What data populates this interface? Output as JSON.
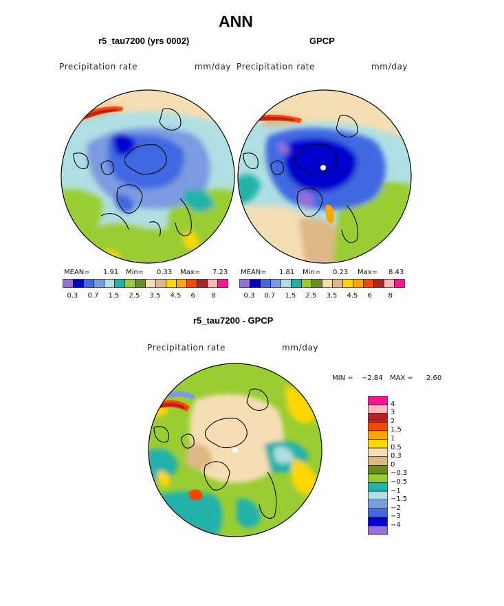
{
  "title": "ANN",
  "panels": [
    {
      "subtitle": "r5_tau7200 (yrs 0002)",
      "variable": "Precipitation rate",
      "units": "mm/day",
      "stats": {
        "mean_label": "MEAN=",
        "mean": "1.91",
        "min_label": "Min=",
        "min": "0.33",
        "max_label": "Max=",
        "max": "7.23"
      }
    },
    {
      "subtitle": "GPCP",
      "variable": "Precipitation rate",
      "units": "mm/day",
      "stats": {
        "mean_label": "MEAN=",
        "mean": "1.81",
        "min_label": "Min=",
        "min": "0.23",
        "max_label": "Max=",
        "max": "8.43"
      }
    }
  ],
  "top_colorbar": {
    "colors": [
      "#9370db",
      "#0000cd",
      "#4169e1",
      "#7b9be0",
      "#afdfe3",
      "#20b2aa",
      "#9acd32",
      "#6b8e23",
      "#f5deb3",
      "#deb887",
      "#ffd700",
      "#ffa500",
      "#ff4500",
      "#b22222",
      "#ffb6c1",
      "#ff1493"
    ],
    "tick_labels": [
      "0.3",
      "0.7",
      "1.5",
      "2.5",
      "3.5",
      "4.5",
      "6",
      "8"
    ]
  },
  "difference": {
    "subtitle": "r5_tau7200 - GPCP",
    "variable": "Precipitation rate",
    "units": "mm/day",
    "stats": {
      "min_label": "MIN =",
      "min": "−2.84",
      "max_label": "MAX =",
      "max": "2.60"
    },
    "colorbar": {
      "colors_top_to_bottom": [
        "#ff1493",
        "#ffb6c1",
        "#b22222",
        "#ff4500",
        "#ffa500",
        "#ffd700",
        "#f5deb3",
        "#deb887",
        "#6b8e23",
        "#9acd32",
        "#20b2aa",
        "#afdfe3",
        "#7b9be0",
        "#4169e1",
        "#0000cd",
        "#9370db"
      ],
      "labels_top_to_bottom": [
        "4",
        "3",
        "2",
        "1.5",
        "1",
        "0.5",
        "0.3",
        "0",
        "−0.3",
        "−0.5",
        "−1",
        "−1.5",
        "−2",
        "−3",
        "−4"
      ]
    }
  }
}
